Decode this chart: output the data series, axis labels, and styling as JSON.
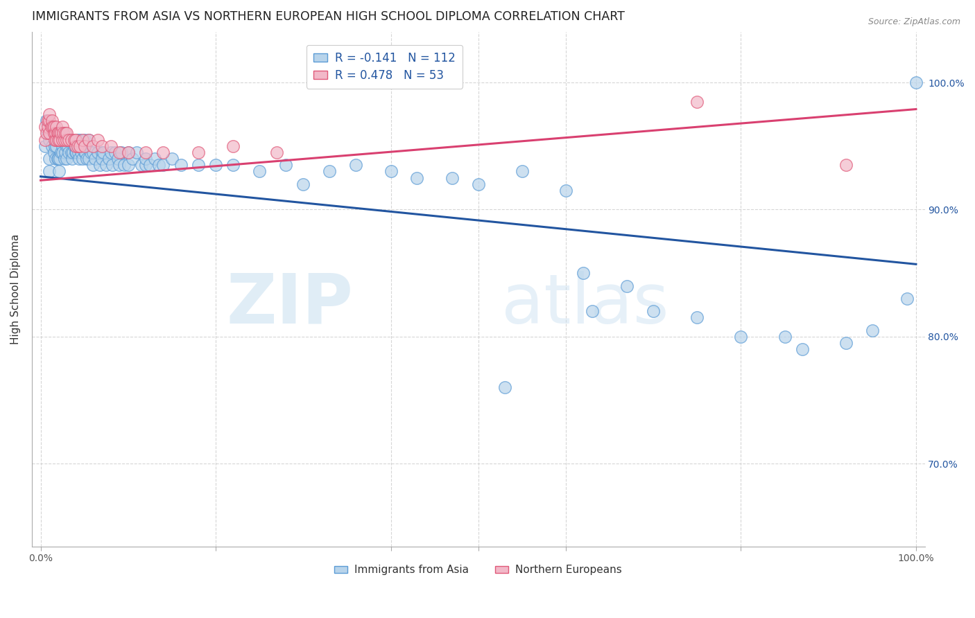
{
  "title": "IMMIGRANTS FROM ASIA VS NORTHERN EUROPEAN HIGH SCHOOL DIPLOMA CORRELATION CHART",
  "source": "Source: ZipAtlas.com",
  "ylabel": "High School Diploma",
  "ytick_labels": [
    "100.0%",
    "90.0%",
    "80.0%",
    "70.0%"
  ],
  "ytick_values": [
    1.0,
    0.9,
    0.8,
    0.7
  ],
  "xlim": [
    -0.01,
    1.01
  ],
  "ylim": [
    0.635,
    1.04
  ],
  "asia_color": "#b8d4eb",
  "asia_edge_color": "#5b9bd5",
  "northern_color": "#f2b8c8",
  "northern_edge_color": "#e05878",
  "asia_line_color": "#2255a0",
  "northern_line_color": "#d94070",
  "legend_asia_label": "R = -0.141   N = 112",
  "legend_northern_label": "R = 0.478   N = 53",
  "legend_bottom_asia": "Immigrants from Asia",
  "legend_bottom_northern": "Northern Europeans",
  "asia_trend_x0": 0.0,
  "asia_trend_y0": 0.926,
  "asia_trend_x1": 1.0,
  "asia_trend_y1": 0.857,
  "northern_trend_x0": 0.0,
  "northern_trend_y0": 0.923,
  "northern_trend_x1": 1.0,
  "northern_trend_y1": 0.979,
  "asia_x": [
    0.005,
    0.007,
    0.008,
    0.01,
    0.01,
    0.01,
    0.012,
    0.013,
    0.015,
    0.015,
    0.016,
    0.017,
    0.018,
    0.018,
    0.019,
    0.02,
    0.02,
    0.021,
    0.022,
    0.022,
    0.023,
    0.024,
    0.025,
    0.025,
    0.025,
    0.026,
    0.027,
    0.028,
    0.028,
    0.03,
    0.03,
    0.031,
    0.032,
    0.033,
    0.035,
    0.035,
    0.036,
    0.037,
    0.038,
    0.04,
    0.04,
    0.041,
    0.042,
    0.043,
    0.044,
    0.045,
    0.046,
    0.048,
    0.05,
    0.05,
    0.051,
    0.053,
    0.055,
    0.055,
    0.057,
    0.06,
    0.06,
    0.062,
    0.065,
    0.068,
    0.07,
    0.07,
    0.072,
    0.075,
    0.078,
    0.08,
    0.082,
    0.085,
    0.088,
    0.09,
    0.092,
    0.095,
    0.1,
    0.1,
    0.105,
    0.11,
    0.115,
    0.12,
    0.12,
    0.125,
    0.13,
    0.135,
    0.14,
    0.15,
    0.16,
    0.18,
    0.2,
    0.22,
    0.25,
    0.28,
    0.3,
    0.33,
    0.36,
    0.4,
    0.43,
    0.47,
    0.5,
    0.55,
    0.6,
    0.62,
    0.63,
    0.67,
    0.7,
    0.75,
    0.8,
    0.85,
    0.87,
    0.92,
    0.95,
    0.99,
    1.0,
    0.53
  ],
  "asia_y": [
    0.95,
    0.97,
    0.96,
    0.93,
    0.955,
    0.94,
    0.96,
    0.95,
    0.96,
    0.945,
    0.95,
    0.94,
    0.96,
    0.95,
    0.94,
    0.955,
    0.94,
    0.93,
    0.955,
    0.94,
    0.945,
    0.955,
    0.95,
    0.96,
    0.945,
    0.96,
    0.94,
    0.955,
    0.945,
    0.94,
    0.95,
    0.95,
    0.945,
    0.955,
    0.945,
    0.955,
    0.94,
    0.945,
    0.95,
    0.945,
    0.95,
    0.945,
    0.955,
    0.945,
    0.94,
    0.955,
    0.945,
    0.94,
    0.955,
    0.945,
    0.945,
    0.94,
    0.955,
    0.94,
    0.945,
    0.945,
    0.935,
    0.94,
    0.945,
    0.935,
    0.945,
    0.94,
    0.945,
    0.935,
    0.94,
    0.945,
    0.935,
    0.945,
    0.94,
    0.935,
    0.945,
    0.935,
    0.945,
    0.935,
    0.94,
    0.945,
    0.935,
    0.935,
    0.94,
    0.935,
    0.94,
    0.935,
    0.935,
    0.94,
    0.935,
    0.935,
    0.935,
    0.935,
    0.93,
    0.935,
    0.92,
    0.93,
    0.935,
    0.93,
    0.925,
    0.925,
    0.92,
    0.93,
    0.915,
    0.85,
    0.82,
    0.84,
    0.82,
    0.815,
    0.8,
    0.8,
    0.79,
    0.795,
    0.805,
    0.83,
    1.0,
    0.76
  ],
  "north_x": [
    0.005,
    0.005,
    0.007,
    0.008,
    0.008,
    0.01,
    0.01,
    0.01,
    0.012,
    0.013,
    0.014,
    0.015,
    0.015,
    0.016,
    0.017,
    0.018,
    0.018,
    0.019,
    0.02,
    0.02,
    0.022,
    0.022,
    0.023,
    0.025,
    0.025,
    0.026,
    0.027,
    0.028,
    0.03,
    0.03,
    0.032,
    0.035,
    0.038,
    0.04,
    0.04,
    0.042,
    0.045,
    0.048,
    0.05,
    0.055,
    0.06,
    0.065,
    0.07,
    0.08,
    0.09,
    0.1,
    0.12,
    0.14,
    0.18,
    0.22,
    0.27,
    0.75,
    0.92
  ],
  "north_y": [
    0.955,
    0.965,
    0.96,
    0.965,
    0.97,
    0.96,
    0.97,
    0.975,
    0.965,
    0.97,
    0.965,
    0.96,
    0.965,
    0.955,
    0.96,
    0.965,
    0.955,
    0.96,
    0.96,
    0.955,
    0.96,
    0.955,
    0.96,
    0.955,
    0.965,
    0.96,
    0.955,
    0.96,
    0.955,
    0.96,
    0.955,
    0.955,
    0.955,
    0.95,
    0.955,
    0.95,
    0.95,
    0.955,
    0.95,
    0.955,
    0.95,
    0.955,
    0.95,
    0.95,
    0.945,
    0.945,
    0.945,
    0.945,
    0.945,
    0.95,
    0.945,
    0.985,
    0.935
  ]
}
